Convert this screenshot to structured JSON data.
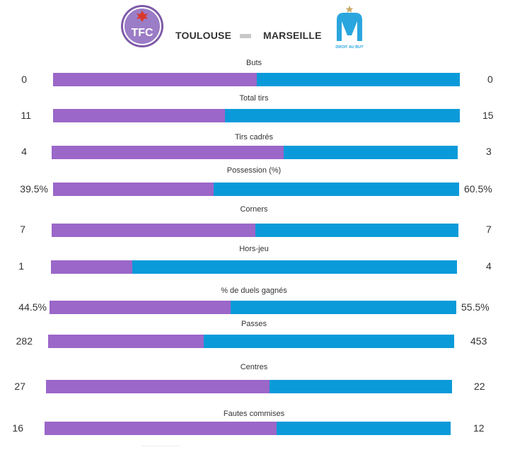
{
  "header": {
    "home_team": "TOULOUSE",
    "away_team": "MARSEILLE",
    "home_logo_text": "TFC",
    "away_logo_text": "DROIT AU BUT"
  },
  "colors": {
    "home": "#9b67c9",
    "away": "#0b9ad9"
  },
  "stats": [
    {
      "label": "Buts",
      "home": "0",
      "away": "0",
      "home_share": 0.5
    },
    {
      "label": "Total tirs",
      "home": "11",
      "away": "15",
      "home_share": 0.423
    },
    {
      "label": "Tirs cadrés",
      "home": "4",
      "away": "3",
      "home_share": 0.571
    },
    {
      "label": "Possession (%)",
      "home": "39.5%",
      "away": "60.5%",
      "home_share": 0.395
    },
    {
      "label": "Corners",
      "home": "7",
      "away": "7",
      "home_share": 0.5
    },
    {
      "label": "Hors-jeu",
      "home": "1",
      "away": "4",
      "home_share": 0.2
    },
    {
      "label": "% de duels gagnés",
      "home": "44.5%",
      "away": "55.5%",
      "home_share": 0.445
    },
    {
      "label": "Passes",
      "home": "282",
      "away": "453",
      "home_share": 0.384
    },
    {
      "label": "Centres",
      "home": "27",
      "away": "22",
      "home_share": 0.551
    },
    {
      "label": "Fautes commises",
      "home": "16",
      "away": "12",
      "home_share": 0.571
    }
  ]
}
